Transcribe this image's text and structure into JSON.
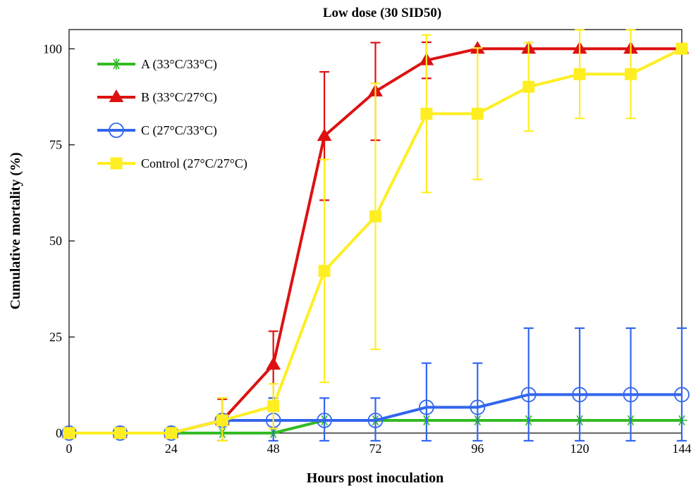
{
  "chart_data": {
    "type": "line",
    "title": "Low dose (30 SID50)",
    "xlabel": "Hours post inoculation",
    "ylabel": "Cumulative mortality (%)",
    "xlim": [
      0,
      144
    ],
    "ylim": [
      0,
      105
    ],
    "xticks": [
      0,
      24,
      48,
      72,
      96,
      120,
      144
    ],
    "yticks": [
      0,
      25,
      50,
      75,
      100
    ],
    "grid": false,
    "legend_position": "top-left",
    "x": [
      0,
      12,
      24,
      36,
      48,
      60,
      72,
      84,
      96,
      108,
      120,
      132,
      144
    ],
    "series": [
      {
        "name": "A (33°C/33°C)",
        "color": "#33bb22",
        "marker": "asterisk",
        "values": [
          0,
          0,
          0,
          0,
          0,
          3.3,
          3.3,
          3.3,
          3.3,
          3.3,
          3.3,
          3.3,
          3.3
        ],
        "errors": [
          0,
          0,
          0,
          0,
          0,
          0,
          0,
          0,
          0,
          0,
          0,
          0,
          0
        ]
      },
      {
        "name": "B (33°C/27°C)",
        "color": "#dd1111",
        "marker": "triangle",
        "values": [
          0,
          0,
          0,
          3.3,
          17.8,
          77.3,
          88.9,
          97,
          100,
          100,
          100,
          100,
          100
        ],
        "errors": [
          0,
          0,
          0,
          5.5,
          8.7,
          16.7,
          12.7,
          4.7,
          0,
          0,
          0,
          0,
          0
        ]
      },
      {
        "name": "C (27°C/33°C)",
        "color": "#3366ee",
        "marker": "circle",
        "values": [
          0,
          0,
          0,
          3.3,
          3.3,
          3.3,
          3.3,
          6.7,
          6.7,
          10,
          10,
          10,
          10
        ],
        "errors": [
          0,
          0,
          0,
          5.8,
          5.8,
          5.8,
          5.8,
          11.5,
          11.5,
          17.3,
          17.3,
          17.3,
          17.3
        ]
      },
      {
        "name": "Control (27°C/27°C)",
        "color": "#ffee22",
        "marker": "square",
        "values": [
          0,
          0,
          0,
          3.3,
          7,
          42.2,
          56.4,
          83.1,
          83.1,
          90.1,
          93.4,
          93.4,
          100
        ],
        "errors": [
          0,
          0,
          0,
          5.8,
          5.8,
          29,
          34.6,
          20.5,
          17.1,
          11.5,
          11.5,
          11.5,
          0
        ]
      }
    ]
  }
}
